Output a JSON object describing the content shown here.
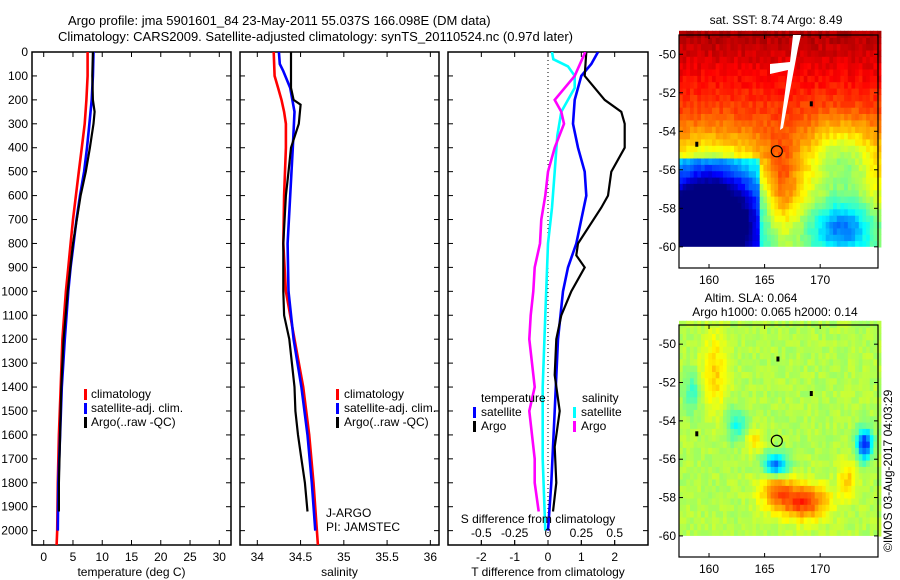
{
  "titles": {
    "line1": "Argo profile: jma 5901601_84 23-May-2011 55.037S 166.098E (DM data)",
    "line2": "Climatology: CARS2009. Satellite-adjusted climatology: synTS_20110524.nc (0.97d later)"
  },
  "colors": {
    "climatology": "#ff0000",
    "satellite": "#0000ff",
    "argo": "#000000",
    "sal_satellite": "#00ffff",
    "sal_argo": "#ff00ff"
  },
  "chart_data": [
    {
      "id": "temperature",
      "type": "line",
      "title": "",
      "xlabel": "temperature (deg C)",
      "ylabel": "",
      "xlim": [
        -2,
        32
      ],
      "ylim": [
        2060,
        0
      ],
      "xticks": [
        0,
        5,
        10,
        15,
        20,
        25,
        30
      ],
      "yticks": [
        0,
        100,
        200,
        300,
        400,
        500,
        600,
        700,
        800,
        900,
        1000,
        1100,
        1200,
        1300,
        1400,
        1500,
        1600,
        1700,
        1800,
        1900,
        2000
      ],
      "legend": {
        "placement": "center",
        "entries": [
          "climatology",
          "satellite-adj. clim.",
          "Argo(..raw -QC)"
        ]
      },
      "series": [
        {
          "name": "climatology",
          "color_key": "climatology",
          "depth": [
            0,
            100,
            200,
            300,
            400,
            500,
            600,
            700,
            800,
            900,
            1000,
            1200,
            1400,
            1600,
            1800,
            2000,
            2060
          ],
          "values": [
            7.5,
            7.5,
            7.3,
            7.0,
            6.5,
            6.0,
            5.5,
            5.0,
            4.6,
            4.2,
            3.8,
            3.2,
            2.9,
            2.6,
            2.4,
            2.3,
            2.2
          ]
        },
        {
          "name": "satellite-adj. clim.",
          "color_key": "satellite",
          "depth": [
            0,
            100,
            200,
            300,
            400,
            500,
            600,
            700,
            800,
            900,
            1000,
            1200,
            1400,
            1600,
            1800,
            2000
          ],
          "values": [
            8.5,
            8.4,
            8.2,
            7.8,
            7.4,
            6.9,
            6.2,
            5.6,
            5.1,
            4.6,
            4.2,
            3.6,
            3.1,
            2.8,
            2.5,
            2.4
          ]
        },
        {
          "name": "Argo(..raw -QC)",
          "color_key": "argo",
          "depth": [
            0,
            100,
            200,
            250,
            300,
            400,
            500,
            600,
            800,
            1000,
            1200,
            1400,
            1600,
            1800,
            1920
          ],
          "values": [
            8.4,
            8.3,
            8.4,
            8.7,
            8.5,
            7.9,
            7.2,
            6.3,
            5.0,
            4.1,
            3.4,
            3.0,
            2.8,
            2.6,
            2.6
          ]
        }
      ]
    },
    {
      "id": "salinity",
      "type": "line",
      "title": "",
      "xlabel": "salinity",
      "ylabel": "",
      "xlim": [
        33.8,
        36.1
      ],
      "ylim": [
        2060,
        0
      ],
      "xticks": [
        34,
        34.5,
        35,
        35.5,
        36
      ],
      "legend": {
        "placement": "center-right",
        "entries": [
          "climatology",
          "satellite-adj. clim.",
          "Argo(..raw -QC)"
        ]
      },
      "annotation": [
        "J-ARGO",
        "PI: JAMSTEC"
      ],
      "series": [
        {
          "name": "climatology",
          "color_key": "climatology",
          "depth": [
            0,
            100,
            150,
            200,
            250,
            300,
            400,
            600,
            800,
            1000,
            1200,
            1400,
            1600,
            1800,
            2060
          ],
          "values": [
            34.19,
            34.2,
            34.24,
            34.28,
            34.31,
            34.33,
            34.33,
            34.31,
            34.3,
            34.33,
            34.43,
            34.53,
            34.6,
            34.65,
            34.7
          ]
        },
        {
          "name": "satellite-adj. clim.",
          "color_key": "satellite",
          "depth": [
            0,
            50,
            80,
            150,
            250,
            400,
            600,
            800,
            1000,
            1200,
            1400,
            1600,
            1800,
            2000
          ],
          "values": [
            34.25,
            34.26,
            34.3,
            34.38,
            34.43,
            34.41,
            34.38,
            34.35,
            34.36,
            34.42,
            34.51,
            34.58,
            34.63,
            34.67
          ]
        },
        {
          "name": "Argo(..raw -QC)",
          "color_key": "argo",
          "depth": [
            0,
            150,
            200,
            220,
            300,
            400,
            500,
            600,
            800,
            1000,
            1100,
            1200,
            1300,
            1400,
            1500,
            1600,
            1700,
            1800,
            1920
          ],
          "values": [
            34.39,
            34.39,
            34.42,
            34.5,
            34.48,
            34.39,
            34.36,
            34.33,
            34.3,
            34.3,
            34.31,
            34.37,
            34.4,
            34.43,
            34.44,
            34.47,
            34.51,
            34.55,
            34.58
          ]
        }
      ]
    },
    {
      "id": "difference",
      "type": "line",
      "title": "",
      "xlabel": "T difference from climatology",
      "xlabel2": "S difference from climatology",
      "xlim": [
        -3,
        3
      ],
      "xlim2": [
        -0.75,
        0.75
      ],
      "ylim": [
        2060,
        0
      ],
      "xticks": [
        -2,
        -1,
        0,
        1,
        2
      ],
      "xticks2": [
        -0.5,
        -0.25,
        0,
        0.25,
        0.5
      ],
      "xtick2_labels": [
        "-0.5",
        "-0.25",
        "0",
        "0.25",
        "0.5"
      ],
      "zero_line": "dotted",
      "legend": {
        "placement": "center",
        "temperature_header": "temperature",
        "salinity_header": "salinity",
        "entries": [
          {
            "group": "temperature",
            "label": "satellite",
            "color_key": "satellite"
          },
          {
            "group": "temperature",
            "label": "Argo",
            "color_key": "argo"
          },
          {
            "group": "salinity",
            "label": "satellite",
            "color_key": "sal_satellite"
          },
          {
            "group": "salinity",
            "label": "Argo",
            "color_key": "sal_argo"
          }
        ]
      },
      "series": [
        {
          "name": "T satellite",
          "axis": "T",
          "color_key": "satellite",
          "depth": [
            0,
            50,
            100,
            200,
            300,
            400,
            500,
            600,
            700,
            800,
            900,
            1000,
            1200,
            1500,
            1800,
            2000
          ],
          "values": [
            1.5,
            1.3,
            1.0,
            0.8,
            0.75,
            0.9,
            1.1,
            1.15,
            1.0,
            0.85,
            0.6,
            0.45,
            0.3,
            0.2,
            0.1,
            0.0
          ]
        },
        {
          "name": "T Argo",
          "axis": "T",
          "color_key": "argo",
          "depth": [
            0,
            100,
            150,
            200,
            250,
            300,
            400,
            500,
            600,
            650,
            800,
            850,
            900,
            1000,
            1100,
            1200,
            1350,
            1500,
            1650,
            1800,
            1920
          ],
          "values": [
            1.15,
            1.1,
            1.4,
            1.7,
            2.2,
            2.3,
            2.3,
            1.9,
            1.8,
            1.6,
            0.9,
            0.85,
            1.1,
            0.7,
            0.4,
            0.25,
            0.2,
            0.35,
            0.2,
            0.25,
            0.15
          ]
        },
        {
          "name": "S satellite",
          "axis": "S",
          "color_key": "sal_satellite",
          "depth": [
            0,
            30,
            60,
            100,
            150,
            250,
            350,
            500,
            650,
            800,
            1100,
            1400,
            1700,
            2000
          ],
          "values": [
            0.03,
            0.04,
            0.15,
            0.2,
            0.2,
            0.1,
            0.07,
            0.05,
            0.03,
            0.0,
            -0.02,
            -0.04,
            -0.04,
            -0.02
          ]
        },
        {
          "name": "S Argo",
          "axis": "S",
          "color_key": "sal_argo",
          "depth": [
            0,
            100,
            200,
            250,
            300,
            400,
            500,
            600,
            700,
            800,
            900,
            1000,
            1100,
            1200,
            1300,
            1400,
            1500,
            1600,
            1700,
            1800,
            1920
          ],
          "values": [
            0.28,
            0.2,
            0.05,
            0.1,
            0.12,
            0.05,
            0.0,
            -0.02,
            -0.05,
            -0.06,
            -0.1,
            -0.11,
            -0.13,
            -0.14,
            -0.12,
            -0.1,
            -0.14,
            -0.12,
            -0.1,
            -0.1,
            -0.07
          ]
        }
      ]
    },
    {
      "id": "sst-map",
      "type": "heatmap",
      "title": "sat. SST: 8.74 Argo: 8.49",
      "xlim": [
        157.3,
        175.2
      ],
      "ylim": [
        -61.1,
        -49.0
      ],
      "xticks": [
        160,
        165,
        170
      ],
      "yticks": [
        -50,
        -52,
        -54,
        -56,
        -58,
        -60
      ],
      "data_extent_bottom": -60,
      "marker": {
        "lon": 166.098,
        "lat": -55.037,
        "shape": "circle"
      },
      "colormap": "jet",
      "description": "warm (yellow/orange) north, cold (dark blue) south-west, green tongue at ~165E"
    },
    {
      "id": "sla-map",
      "type": "heatmap",
      "title": "Altim. SLA: 0.064",
      "subtitle": "Argo h1000: 0.065 h2000: 0.14",
      "xlim": [
        157.3,
        175.2
      ],
      "ylim": [
        -61.1,
        -49.0
      ],
      "xticks": [
        160,
        165,
        170
      ],
      "yticks": [
        -50,
        -52,
        -54,
        -56,
        -58,
        -60
      ],
      "data_extent_bottom": -60,
      "marker": {
        "lon": 166.098,
        "lat": -55.037,
        "shape": "circle"
      },
      "colormap": "jet",
      "description": "mostly green with blue eddy near 166E 56.3S and orange/red high near 168-169E 58S"
    }
  ],
  "credit": "©IMOS 03-Aug-2017 04:03:29"
}
